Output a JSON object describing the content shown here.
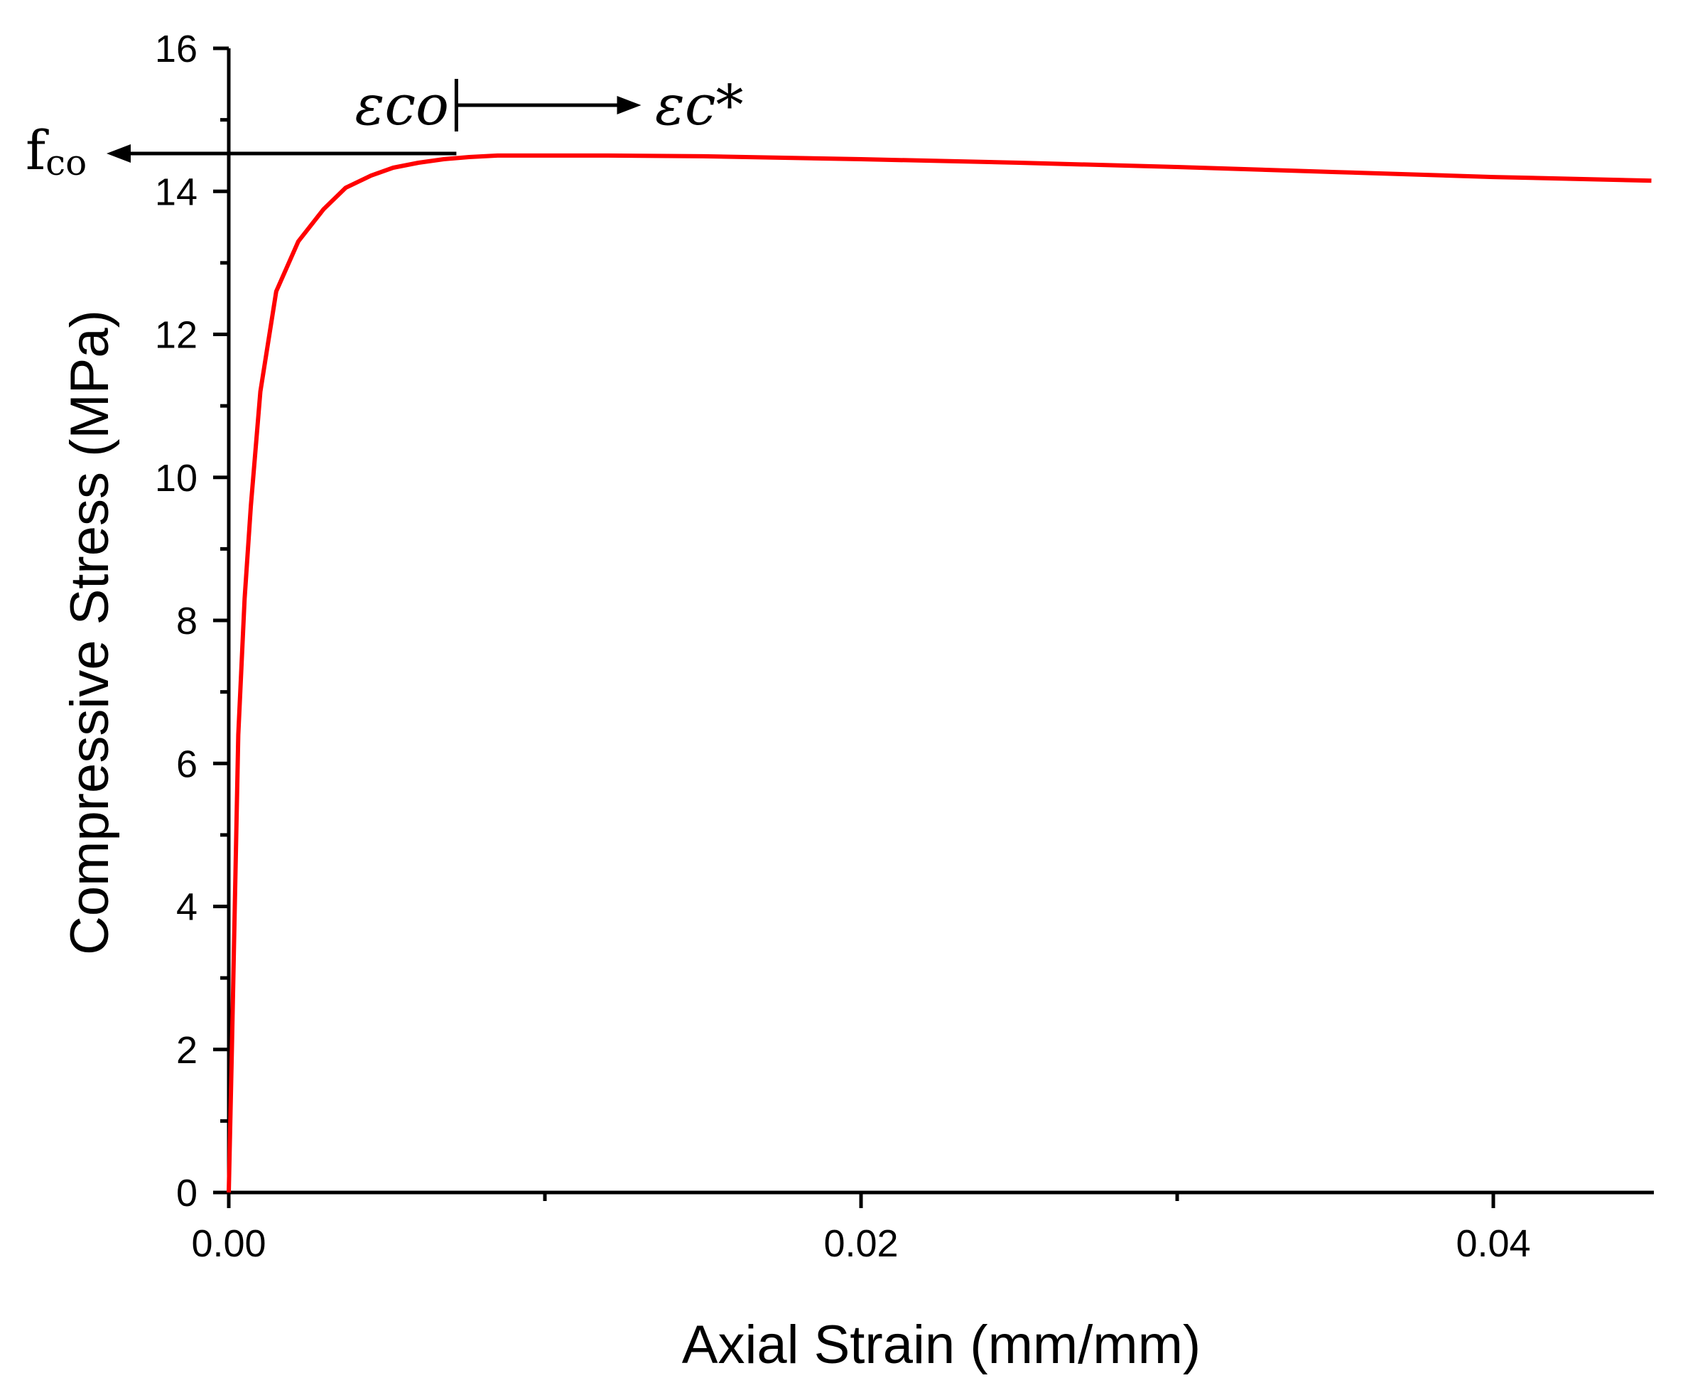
{
  "chart_data": {
    "type": "line",
    "title": "",
    "xlabel": "Axial Strain (mm/mm)",
    "ylabel": "Compressive Stress (MPa)",
    "xlim": [
      0,
      0.045
    ],
    "ylim": [
      0,
      16
    ],
    "x_ticks": [
      0,
      0.02,
      0.04
    ],
    "x_tick_labels": [
      "0.00",
      "0.02",
      "0.04"
    ],
    "x_minor_ticks": [
      0.01,
      0.03
    ],
    "y_ticks": [
      0,
      2,
      4,
      6,
      8,
      10,
      12,
      14,
      16
    ],
    "y_tick_labels": [
      "0",
      "2",
      "4",
      "6",
      "8",
      "10",
      "12",
      "14",
      "16"
    ],
    "grid": false,
    "legend": "none",
    "colors": {
      "curve": "#ff0000",
      "axes": "#000000"
    },
    "series": [
      {
        "x": [
          0,
          0.0001,
          0.0002,
          0.0003,
          0.0005,
          0.0007,
          0.001,
          0.0015,
          0.0022,
          0.003,
          0.0037,
          0.0045,
          0.0052,
          0.006,
          0.0068,
          0.0076,
          0.0085,
          0.0095,
          0.0105,
          0.012,
          0.015,
          0.02,
          0.025,
          0.03,
          0.035,
          0.04,
          0.045
        ],
        "y": [
          0,
          2.0,
          4.2,
          6.4,
          8.3,
          9.6,
          11.2,
          12.6,
          13.3,
          13.75,
          14.05,
          14.22,
          14.33,
          14.4,
          14.45,
          14.48,
          14.5,
          14.5,
          14.5,
          14.5,
          14.49,
          14.45,
          14.4,
          14.34,
          14.27,
          14.2,
          14.15
        ]
      }
    ],
    "annotations": {
      "fco_label": "f",
      "fco_sub": "co",
      "fco_value": 14.5,
      "eco_label": "εco",
      "eco_value": 0.0072,
      "ec_label": "εc*",
      "ec_arrow_end": 0.013
    }
  }
}
